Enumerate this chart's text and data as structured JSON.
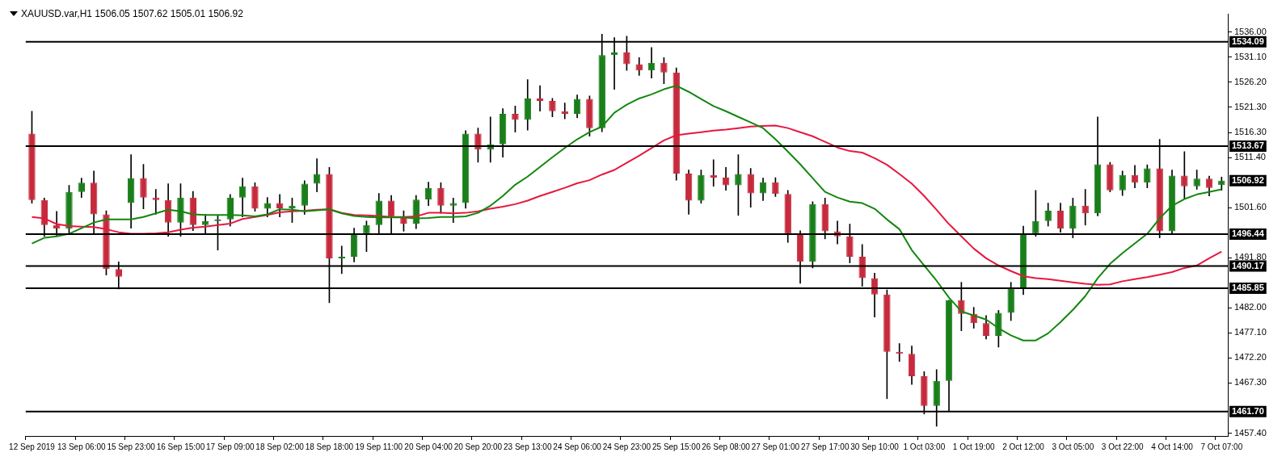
{
  "chart_data": {
    "type": "candlestick",
    "title": "XAUUSD.var,H1  1506.05 1507.62 1505.01 1506.92",
    "categories": [
      "12 Sep 2019",
      null,
      null,
      null,
      "13 Sep 06:00",
      null,
      null,
      null,
      "15 Sep 23:00",
      null,
      null,
      null,
      "16 Sep 15:00",
      null,
      null,
      null,
      "17 Sep 09:00",
      null,
      null,
      null,
      "18 Sep 02:00",
      null,
      null,
      null,
      "18 Sep 18:00",
      null,
      null,
      null,
      "19 Sep 11:00",
      null,
      null,
      null,
      "20 Sep 04:00",
      null,
      null,
      null,
      "20 Sep 20:00",
      null,
      null,
      null,
      "23 Sep 13:00",
      null,
      null,
      null,
      "24 Sep 06:00",
      null,
      null,
      null,
      "24 Sep 23:00",
      null,
      null,
      null,
      "25 Sep 15:00",
      null,
      null,
      null,
      "26 Sep 08:00",
      null,
      null,
      null,
      "27 Sep 01:00",
      null,
      null,
      null,
      "27 Sep 17:00",
      null,
      null,
      null,
      "30 Sep 10:00",
      null,
      null,
      null,
      "1 Oct 03:00",
      null,
      null,
      null,
      "1 Oct 19:00",
      null,
      null,
      null,
      "2 Oct 12:00",
      null,
      null,
      null,
      "3 Oct 05:00",
      null,
      null,
      null,
      "3 Oct 22:00",
      null,
      null,
      null,
      "4 Oct 14:00",
      null,
      null,
      null,
      "7 Oct 07:00"
    ],
    "ohlc": [
      [
        1516.1,
        1520.5,
        1502.5,
        1503.1
      ],
      [
        1503.1,
        1503.5,
        1496.0,
        1498.2
      ],
      [
        1498.2,
        1500.9,
        1496.0,
        1497.5
      ],
      [
        1497.5,
        1506.0,
        1496.5,
        1504.7
      ],
      [
        1504.7,
        1507.4,
        1503.6,
        1506.5
      ],
      [
        1506.5,
        1508.8,
        1496.5,
        1500.3
      ],
      [
        1500.3,
        1501.0,
        1488.4,
        1489.6
      ],
      [
        1489.6,
        1491.0,
        1485.7,
        1488.1
      ],
      [
        1502.5,
        1512.0,
        1497.6,
        1507.4
      ],
      [
        1507.4,
        1510.1,
        1501.4,
        1503.6
      ],
      [
        1503.6,
        1505.2,
        1500.3,
        1503.1
      ],
      [
        1503.1,
        1506.3,
        1496.0,
        1498.7
      ],
      [
        1498.7,
        1506.3,
        1496.0,
        1503.6
      ],
      [
        1503.6,
        1504.8,
        1497.1,
        1498.2
      ],
      [
        1498.2,
        1500.3,
        1496.5,
        1499.0
      ],
      [
        1499.0,
        1500.0,
        1493.3,
        1499.3
      ],
      [
        1499.3,
        1504.2,
        1498.0,
        1503.6
      ],
      [
        1503.6,
        1507.4,
        1499.8,
        1505.8
      ],
      [
        1505.8,
        1506.5,
        1500.9,
        1501.4
      ],
      [
        1501.4,
        1503.6,
        1499.8,
        1502.5
      ],
      [
        1502.5,
        1504.2,
        1499.8,
        1501.5
      ],
      [
        1501.5,
        1503.5,
        1498.7,
        1502.0
      ],
      [
        1502.0,
        1506.9,
        1500.3,
        1506.3
      ],
      [
        1506.3,
        1511.2,
        1504.7,
        1508.2
      ],
      [
        1508.2,
        1509.5,
        1483.0,
        1491.7
      ],
      [
        1491.7,
        1494.1,
        1488.7,
        1492.0
      ],
      [
        1492.0,
        1497.6,
        1491.0,
        1496.5
      ],
      [
        1496.5,
        1499.0,
        1493.0,
        1498.2
      ],
      [
        1498.2,
        1504.4,
        1496.5,
        1503.0
      ],
      [
        1503.0,
        1504.0,
        1496.5,
        1499.8
      ],
      [
        1499.8,
        1501.0,
        1497.0,
        1498.5
      ],
      [
        1498.5,
        1504.0,
        1497.5,
        1503.2
      ],
      [
        1503.2,
        1506.6,
        1502.0,
        1505.5
      ],
      [
        1505.5,
        1506.5,
        1500.5,
        1502.0
      ],
      [
        1502.0,
        1503.5,
        1498.7,
        1502.5
      ],
      [
        1502.5,
        1516.7,
        1501.5,
        1516.1
      ],
      [
        1516.1,
        1517.2,
        1510.5,
        1513.0
      ],
      [
        1513.0,
        1519.4,
        1510.5,
        1514.0
      ],
      [
        1514.0,
        1521.0,
        1511.5,
        1520.0
      ],
      [
        1520.0,
        1521.5,
        1516.4,
        1518.8
      ],
      [
        1518.8,
        1526.7,
        1516.8,
        1523.0
      ],
      [
        1523.0,
        1525.5,
        1520.5,
        1522.5
      ],
      [
        1522.5,
        1523.0,
        1519.4,
        1520.5
      ],
      [
        1520.5,
        1522.1,
        1519.0,
        1520.0
      ],
      [
        1520.0,
        1523.7,
        1519.2,
        1522.9
      ],
      [
        1522.9,
        1523.5,
        1515.6,
        1517.2
      ],
      [
        1517.2,
        1535.6,
        1516.5,
        1531.5
      ],
      [
        1531.5,
        1534.9,
        1524.8,
        1532.0
      ],
      [
        1532.0,
        1535.2,
        1528.5,
        1529.7
      ],
      [
        1529.7,
        1531.0,
        1527.5,
        1528.5
      ],
      [
        1528.5,
        1533.0,
        1527.0,
        1530.0
      ],
      [
        1530.0,
        1531.0,
        1525.9,
        1528.1
      ],
      [
        1528.1,
        1529.0,
        1507.0,
        1508.3
      ],
      [
        1508.3,
        1509.0,
        1500.3,
        1503.0
      ],
      [
        1503.0,
        1509.0,
        1502.5,
        1508.0
      ],
      [
        1508.0,
        1511.0,
        1505.8,
        1507.5
      ],
      [
        1507.5,
        1509.5,
        1505.0,
        1506.0
      ],
      [
        1506.0,
        1512.0,
        1500.1,
        1508.2
      ],
      [
        1508.2,
        1509.3,
        1501.7,
        1504.4
      ],
      [
        1504.4,
        1507.4,
        1503.0,
        1506.6
      ],
      [
        1506.6,
        1507.5,
        1503.8,
        1504.3
      ],
      [
        1504.3,
        1505.0,
        1494.8,
        1496.5
      ],
      [
        1496.5,
        1497.1,
        1486.8,
        1491.0
      ],
      [
        1491.0,
        1502.8,
        1489.8,
        1502.3
      ],
      [
        1502.3,
        1503.5,
        1495.5,
        1497.0
      ],
      [
        1497.0,
        1499.0,
        1494.5,
        1496.0
      ],
      [
        1496.0,
        1498.4,
        1490.8,
        1492.0
      ],
      [
        1492.0,
        1494.4,
        1486.2,
        1487.8
      ],
      [
        1487.8,
        1488.8,
        1480.2,
        1484.6
      ],
      [
        1484.6,
        1485.5,
        1464.2,
        1473.4
      ],
      [
        1473.4,
        1475.0,
        1471.5,
        1473.0
      ],
      [
        1473.0,
        1474.5,
        1467.0,
        1468.6
      ],
      [
        1468.6,
        1469.5,
        1461.2,
        1462.8
      ],
      [
        1462.8,
        1469.9,
        1458.8,
        1467.7
      ],
      [
        1467.7,
        1483.5,
        1461.8,
        1483.5
      ],
      [
        1483.5,
        1487.0,
        1477.5,
        1480.8
      ],
      [
        1480.8,
        1482.1,
        1478.0,
        1479.0
      ],
      [
        1479.0,
        1480.5,
        1475.9,
        1476.5
      ],
      [
        1476.5,
        1481.5,
        1474.3,
        1481.0
      ],
      [
        1481.0,
        1487.0,
        1479.5,
        1485.7
      ],
      [
        1485.7,
        1498.0,
        1484.6,
        1496.5
      ],
      [
        1496.5,
        1505.0,
        1496.0,
        1499.0
      ],
      [
        1499.0,
        1502.5,
        1498.0,
        1501.0
      ],
      [
        1501.0,
        1502.5,
        1496.8,
        1497.5
      ],
      [
        1497.5,
        1503.5,
        1495.7,
        1502.0
      ],
      [
        1502.0,
        1505.2,
        1498.2,
        1500.5
      ],
      [
        1500.5,
        1519.4,
        1500.0,
        1510.1
      ],
      [
        1510.1,
        1510.5,
        1504.7,
        1505.0
      ],
      [
        1505.0,
        1508.8,
        1504.0,
        1508.0
      ],
      [
        1508.0,
        1509.9,
        1505.5,
        1506.5
      ],
      [
        1506.5,
        1510.0,
        1505.5,
        1509.3
      ],
      [
        1509.3,
        1515.0,
        1495.7,
        1497.0
      ],
      [
        1497.0,
        1509.0,
        1496.5,
        1507.9
      ],
      [
        1507.9,
        1512.6,
        1503.3,
        1505.8
      ],
      [
        1505.8,
        1509.0,
        1505.2,
        1507.3
      ],
      [
        1507.3,
        1507.8,
        1503.9,
        1505.5
      ],
      [
        1506.05,
        1507.62,
        1505.01,
        1506.92
      ]
    ],
    "colors": [
      "#c62a3c",
      "#c62a3c",
      "#c62a3c",
      "#1a7f1a",
      "#1a7f1a",
      "#c62a3c",
      "#c62a3c",
      "#c62a3c",
      "#1a7f1a",
      "#c62a3c",
      "#c62a3c",
      "#c62a3c",
      "#1a7f1a",
      "#c62a3c",
      "#1a7f1a",
      "#1a7f1a",
      "#1a7f1a",
      "#1a7f1a",
      "#c62a3c",
      "#1a7f1a",
      "#c62a3c",
      "#1a7f1a",
      "#1a7f1a",
      "#1a7f1a",
      "#c62a3c",
      "#1a7f1a",
      "#1a7f1a",
      "#1a7f1a",
      "#1a7f1a",
      "#c62a3c",
      "#c62a3c",
      "#1a7f1a",
      "#1a7f1a",
      "#c62a3c",
      "#1a7f1a",
      "#1a7f1a",
      "#c62a3c",
      "#1a7f1a",
      "#1a7f1a",
      "#c62a3c",
      "#1a7f1a",
      "#c62a3c",
      "#c62a3c",
      "#c62a3c",
      "#1a7f1a",
      "#c62a3c",
      "#1a7f1a",
      "#1a7f1a",
      "#c62a3c",
      "#c62a3c",
      "#1a7f1a",
      "#c62a3c",
      "#c62a3c",
      "#c62a3c",
      "#1a7f1a",
      "#c62a3c",
      "#c62a3c",
      "#1a7f1a",
      "#c62a3c",
      "#1a7f1a",
      "#c62a3c",
      "#c62a3c",
      "#c62a3c",
      "#1a7f1a",
      "#c62a3c",
      "#c62a3c",
      "#c62a3c",
      "#c62a3c",
      "#c62a3c",
      "#c62a3c",
      "#c62a3c",
      "#c62a3c",
      "#c62a3c",
      "#1a7f1a",
      "#1a7f1a",
      "#c62a3c",
      "#c62a3c",
      "#c62a3c",
      "#1a7f1a",
      "#1a7f1a",
      "#1a7f1a",
      "#1a7f1a",
      "#1a7f1a",
      "#c62a3c",
      "#1a7f1a",
      "#c62a3c",
      "#1a7f1a",
      "#c62a3c",
      "#1a7f1a",
      "#c62a3c",
      "#1a7f1a",
      "#c62a3c",
      "#1a7f1a",
      "#c62a3c",
      "#1a7f1a",
      "#c62a3c",
      "#1a7f1a"
    ],
    "series": [
      {
        "type": "line",
        "color": "#13870f",
        "values": [
          1494.6,
          1495.7,
          1496.0,
          1496.5,
          1497.6,
          1498.7,
          1499.3,
          1499.3,
          1499.3,
          1499.8,
          1500.5,
          1501.2,
          1500.9,
          1500.3,
          1500.2,
          1500.2,
          1500.2,
          1500.1,
          1499.9,
          1500.3,
          1501.3,
          1501.2,
          1500.9,
          1501.1,
          1501.3,
          1500.5,
          1500.0,
          1499.8,
          1499.7,
          1499.7,
          1499.7,
          1499.5,
          1499.6,
          1499.8,
          1499.8,
          1499.9,
          1500.6,
          1502.0,
          1503.9,
          1506.1,
          1507.7,
          1509.6,
          1511.5,
          1513.3,
          1515.0,
          1516.4,
          1517.5,
          1520.2,
          1521.8,
          1523.0,
          1523.8,
          1524.8,
          1525.5,
          1524.3,
          1522.9,
          1521.5,
          1520.5,
          1519.4,
          1518.3,
          1517.2,
          1515.0,
          1512.6,
          1510.1,
          1507.4,
          1504.7,
          1503.6,
          1502.8,
          1502.5,
          1501.4,
          1499.3,
          1497.4,
          1493.3,
          1490.3,
          1487.3,
          1484.0,
          1481.3,
          1480.5,
          1479.7,
          1478.0,
          1476.6,
          1475.6,
          1475.6,
          1477.0,
          1479.2,
          1481.6,
          1484.3,
          1487.8,
          1490.6,
          1492.7,
          1494.6,
          1496.5,
          1499.5,
          1502.0,
          1503.3,
          1504.2,
          1504.7,
          1505.2
        ]
      },
      {
        "type": "line",
        "color": "#e8173f",
        "values": [
          1499.8,
          1499.5,
          1498.4,
          1498.0,
          1497.9,
          1497.8,
          1497.4,
          1496.8,
          1496.5,
          1496.5,
          1496.6,
          1496.8,
          1497.3,
          1497.7,
          1497.9,
          1498.2,
          1498.5,
          1499.4,
          1499.8,
          1500.2,
          1500.7,
          1500.9,
          1501.0,
          1501.2,
          1501.3,
          1500.6,
          1500.2,
          1500.1,
          1500.0,
          1499.8,
          1499.8,
          1499.9,
          1500.6,
          1500.6,
          1500.5,
          1500.6,
          1500.9,
          1501.4,
          1501.8,
          1502.3,
          1503.0,
          1503.9,
          1504.7,
          1505.5,
          1506.4,
          1507.0,
          1508.1,
          1509.0,
          1510.4,
          1511.8,
          1513.3,
          1514.8,
          1515.8,
          1516.1,
          1516.4,
          1516.7,
          1516.9,
          1517.2,
          1517.5,
          1517.6,
          1517.7,
          1517.2,
          1516.4,
          1515.6,
          1514.5,
          1513.4,
          1512.7,
          1512.4,
          1511.3,
          1510.0,
          1508.2,
          1506.3,
          1503.9,
          1501.2,
          1498.4,
          1496.0,
          1493.6,
          1491.7,
          1490.3,
          1489.2,
          1488.2,
          1487.8,
          1487.6,
          1487.3,
          1487.0,
          1486.7,
          1486.5,
          1486.6,
          1487.2,
          1487.6,
          1488.0,
          1488.5,
          1489.0,
          1489.8,
          1490.3,
          1491.7,
          1493.0
        ]
      }
    ],
    "ylim": [
      1456.9,
      1539.5
    ],
    "yticks": [
      {
        "value": 1457.4,
        "label": "1457.40"
      },
      {
        "value": 1467.3,
        "label": "1467.30"
      },
      {
        "value": 1472.2,
        "label": "1472.20"
      },
      {
        "value": 1477.1,
        "label": "1477.10"
      },
      {
        "value": 1482.0,
        "label": "1482.00"
      },
      {
        "value": 1491.8,
        "label": "1491.80"
      },
      {
        "value": 1501.6,
        "label": "1501.60"
      },
      {
        "value": 1511.4,
        "label": "1511.40"
      },
      {
        "value": 1516.3,
        "label": "1516.30"
      },
      {
        "value": 1521.3,
        "label": "1521.30"
      },
      {
        "value": 1526.2,
        "label": "1526.20"
      },
      {
        "value": 1531.1,
        "label": "1531.10"
      },
      {
        "value": 1536.0,
        "label": "1536.00"
      }
    ],
    "ref_lines": [
      {
        "axis": "y",
        "value": 1534.09,
        "label": "1534.09",
        "color": "#000000"
      },
      {
        "axis": "y",
        "value": 1513.67,
        "label": "1513.67",
        "color": "#000000"
      },
      {
        "axis": "y",
        "value": 1496.44,
        "label": "1496.44",
        "color": "#000000"
      },
      {
        "axis": "y",
        "value": 1490.17,
        "label": "1490.17",
        "color": "#000000"
      },
      {
        "axis": "y",
        "value": 1485.85,
        "label": "1485.85",
        "color": "#000000"
      },
      {
        "axis": "y",
        "value": 1461.7,
        "label": "1461.70",
        "color": "#000000"
      }
    ],
    "annotations": [
      "1506.92"
    ],
    "grid": false,
    "legend": false
  }
}
